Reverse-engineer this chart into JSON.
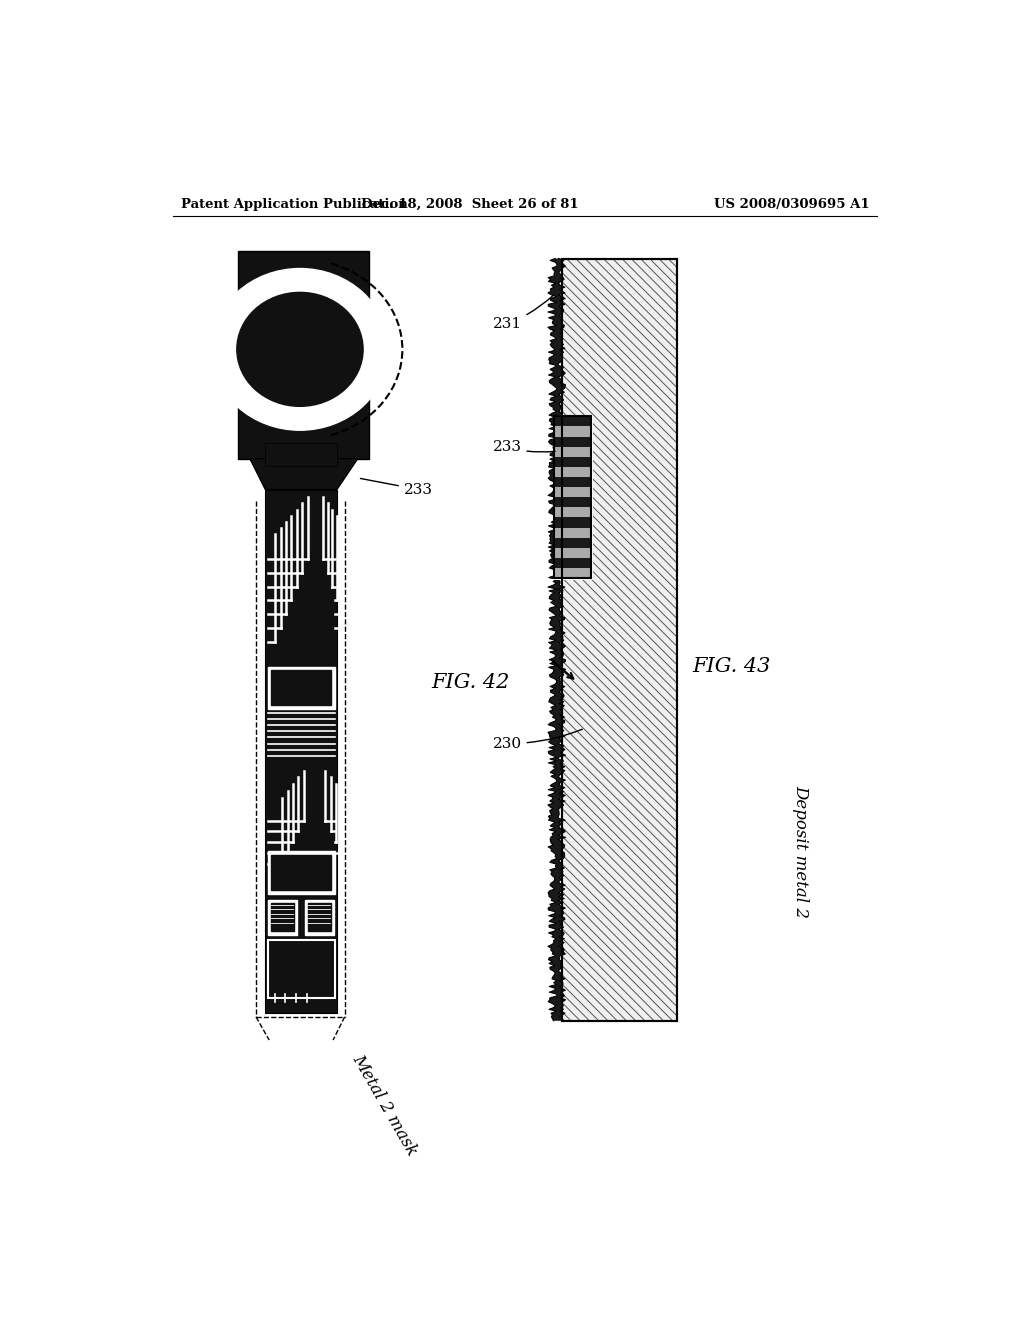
{
  "bg_color": "#ffffff",
  "header_text_left": "Patent Application Publication",
  "header_text_mid": "Dec. 18, 2008  Sheet 26 of 81",
  "header_text_right": "US 2008/0309695 A1",
  "fig42_label": "FIG. 42",
  "fig43_label": "FIG. 43",
  "label_233_fig42": "233",
  "label_231": "231",
  "label_233_fig43": "233",
  "label_230": "230",
  "caption_fig42": "Metal 2 mask",
  "caption_fig43": "Deposit metal 2"
}
